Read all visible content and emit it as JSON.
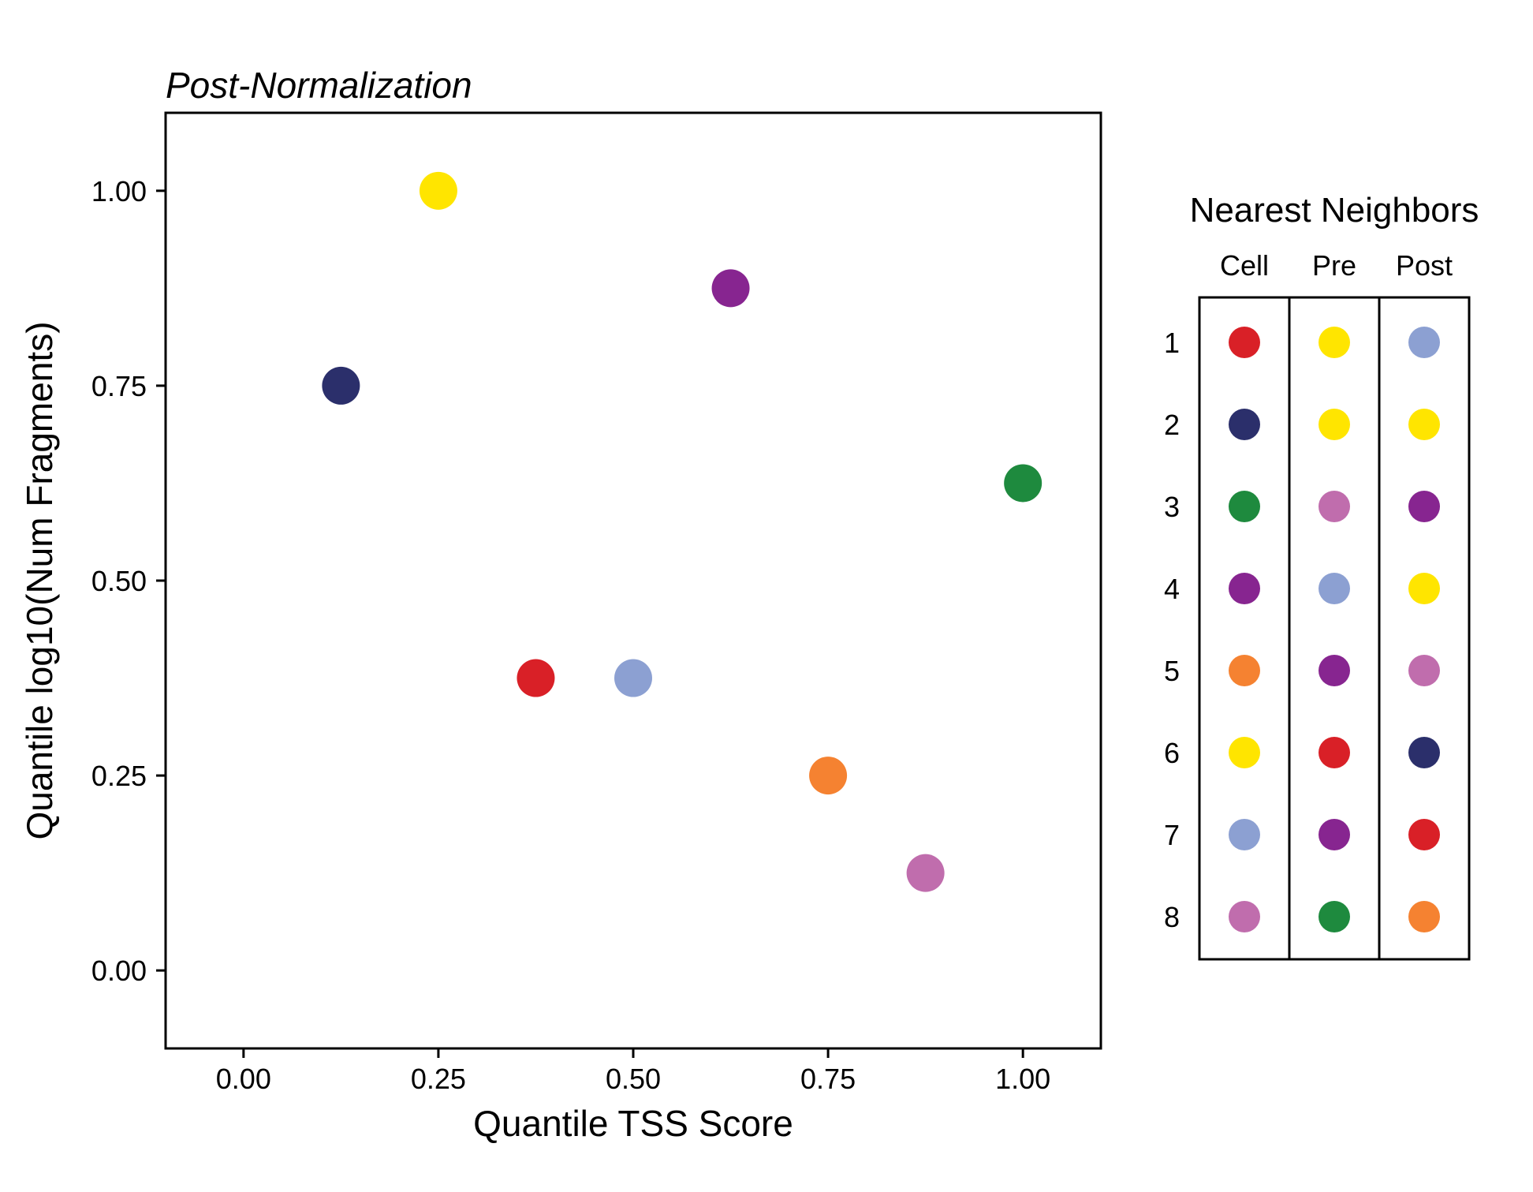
{
  "chart_data": [
    {
      "type": "scatter",
      "title": "Post-Normalization",
      "xlabel": "Quantile TSS Score",
      "ylabel": "Quantile log10(Num Fragments)",
      "xlim": [
        -0.1,
        1.1
      ],
      "ylim": [
        -0.1,
        1.1
      ],
      "xticks": [
        0,
        0.25,
        0.5,
        0.75,
        1.0
      ],
      "yticks": [
        0,
        0.25,
        0.5,
        0.75,
        1.0
      ],
      "xtick_labels": [
        "0.00",
        "0.25",
        "0.50",
        "0.75",
        "1.00"
      ],
      "ytick_labels": [
        "0.00",
        "0.25",
        "0.50",
        "0.75",
        "1.00"
      ],
      "grid": false,
      "points": [
        {
          "x": 0.125,
          "y": 0.75,
          "color": "#2b2f6b"
        },
        {
          "x": 0.25,
          "y": 1.0,
          "color": "#ffe500"
        },
        {
          "x": 0.375,
          "y": 0.375,
          "color": "#d92027"
        },
        {
          "x": 0.5,
          "y": 0.375,
          "color": "#8ca0d2"
        },
        {
          "x": 0.625,
          "y": 0.875,
          "color": "#872590"
        },
        {
          "x": 0.75,
          "y": 0.25,
          "color": "#f58231"
        },
        {
          "x": 0.875,
          "y": 0.125,
          "color": "#c06dad"
        },
        {
          "x": 1.0,
          "y": 0.625,
          "color": "#1e8a3e"
        }
      ]
    },
    {
      "type": "table",
      "title": "Nearest Neighbors",
      "columns": [
        "Cell",
        "Pre",
        "Post"
      ],
      "rows": [
        "1",
        "2",
        "3",
        "4",
        "5",
        "6",
        "7",
        "8"
      ],
      "cells": [
        [
          "#d92027",
          "#ffe500",
          "#8ca0d2"
        ],
        [
          "#2b2f6b",
          "#ffe500",
          "#ffe500"
        ],
        [
          "#1e8a3e",
          "#c06dad",
          "#872590"
        ],
        [
          "#872590",
          "#8ca0d2",
          "#ffe500"
        ],
        [
          "#f58231",
          "#872590",
          "#c06dad"
        ],
        [
          "#ffe500",
          "#d92027",
          "#2b2f6b"
        ],
        [
          "#8ca0d2",
          "#872590",
          "#d92027"
        ],
        [
          "#c06dad",
          "#1e8a3e",
          "#f58231"
        ]
      ]
    }
  ]
}
